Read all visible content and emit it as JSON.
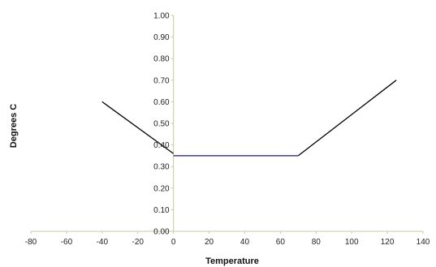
{
  "chart_data": {
    "type": "line",
    "title": "",
    "xlabel": "Temperature",
    "ylabel": "Degrees C",
    "xlim": [
      -80,
      140
    ],
    "ylim": [
      0,
      1.0
    ],
    "x_ticks": [
      "-80",
      "-60",
      "-40",
      "-20",
      "0",
      "20",
      "40",
      "60",
      "80",
      "100",
      "120",
      "140"
    ],
    "y_ticks": [
      "0.00",
      "0.10",
      "0.20",
      "0.30",
      "0.40",
      "0.50",
      "0.60",
      "0.70",
      "0.80",
      "0.90",
      "1.00"
    ],
    "grid": false,
    "series": [
      {
        "color": "#000000",
        "points": [
          [
            -40,
            0.6
          ],
          [
            0,
            0.36
          ]
        ]
      },
      {
        "color": "#1a1a7a",
        "points": [
          [
            0,
            0.35
          ],
          [
            70,
            0.35
          ]
        ]
      },
      {
        "color": "#000000",
        "points": [
          [
            70,
            0.35
          ],
          [
            125,
            0.7
          ]
        ]
      }
    ],
    "axis_color": "#c9c9a0"
  }
}
